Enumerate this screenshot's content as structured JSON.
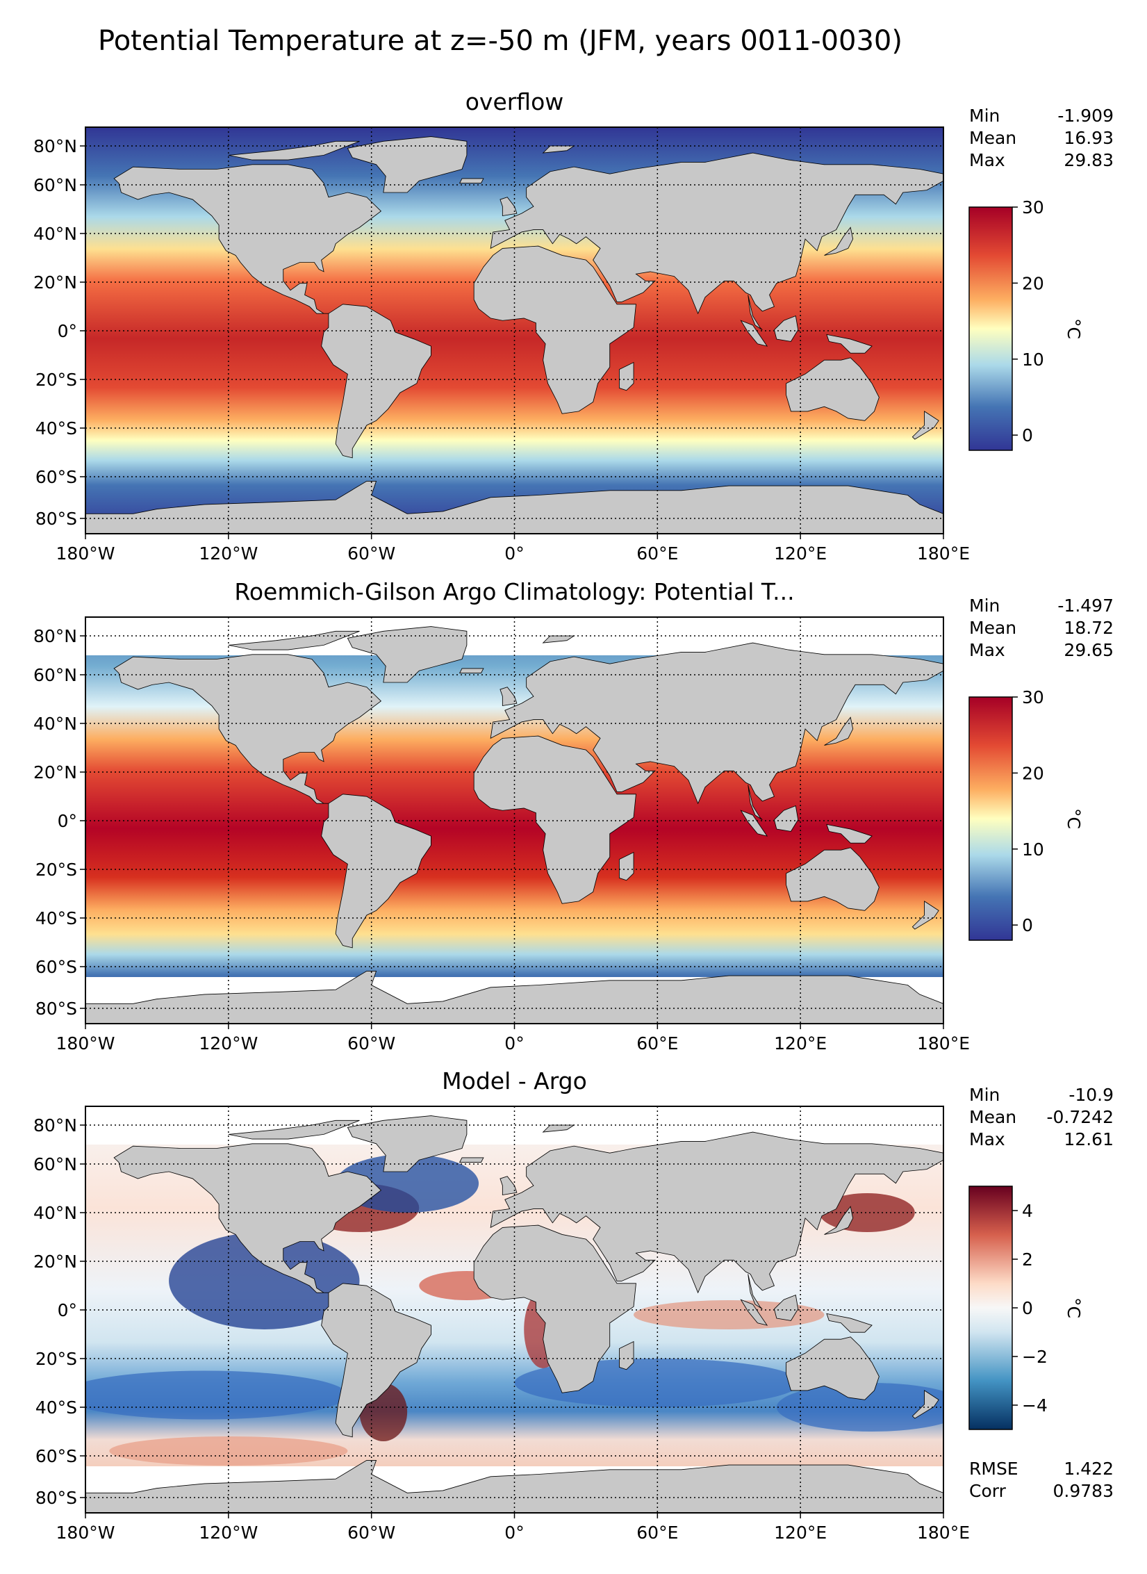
{
  "figure_title": "Potential Temperature at z=-50 m (JFM, years 0011-0030)",
  "lat_ticks": [
    "80°N",
    "60°N",
    "40°N",
    "20°N",
    "0°",
    "20°S",
    "40°S",
    "60°S",
    "80°S"
  ],
  "lon_ticks": [
    "180°W",
    "120°W",
    "60°W",
    "0°",
    "60°E",
    "120°E",
    "180°E"
  ],
  "panels": [
    {
      "title": "overflow",
      "stats": [
        [
          "Min",
          "-1.909"
        ],
        [
          "Mean",
          "16.93"
        ],
        [
          "Max",
          "29.83"
        ]
      ],
      "colorbar": {
        "unit": "°C",
        "ticks": [
          "30",
          "20",
          "10",
          "0"
        ],
        "range": [
          -2,
          30
        ],
        "tick_values": [
          30,
          20,
          10,
          0
        ],
        "colormap": "RdYlBu_r"
      },
      "extra_stats": []
    },
    {
      "title": "Roemmich-Gilson Argo Climatology: Potential T...",
      "stats": [
        [
          "Min",
          "-1.497"
        ],
        [
          "Mean",
          "18.72"
        ],
        [
          "Max",
          "29.65"
        ]
      ],
      "colorbar": {
        "unit": "°C",
        "ticks": [
          "30",
          "20",
          "10",
          "0"
        ],
        "range": [
          -2,
          30
        ],
        "tick_values": [
          30,
          20,
          10,
          0
        ],
        "colormap": "RdYlBu_r"
      },
      "extra_stats": []
    },
    {
      "title": "Model - Argo",
      "stats": [
        [
          "Min",
          "-10.9"
        ],
        [
          "Mean",
          "-0.7242"
        ],
        [
          "Max",
          "12.61"
        ]
      ],
      "colorbar": {
        "unit": "°C",
        "ticks": [
          "4",
          "2",
          "0",
          "−2",
          "−4"
        ],
        "range": [
          -5,
          5
        ],
        "tick_values": [
          4,
          2,
          0,
          -2,
          -4
        ],
        "colormap": "RdBu_r"
      },
      "extra_stats": [
        [
          "RMSE",
          "1.422"
        ],
        [
          "Corr",
          "0.9783"
        ]
      ]
    }
  ],
  "colors": {
    "land": "#c8c8c8",
    "warm": "#b40426",
    "cool": "#3b4cc0",
    "missing": "#ffffff"
  }
}
